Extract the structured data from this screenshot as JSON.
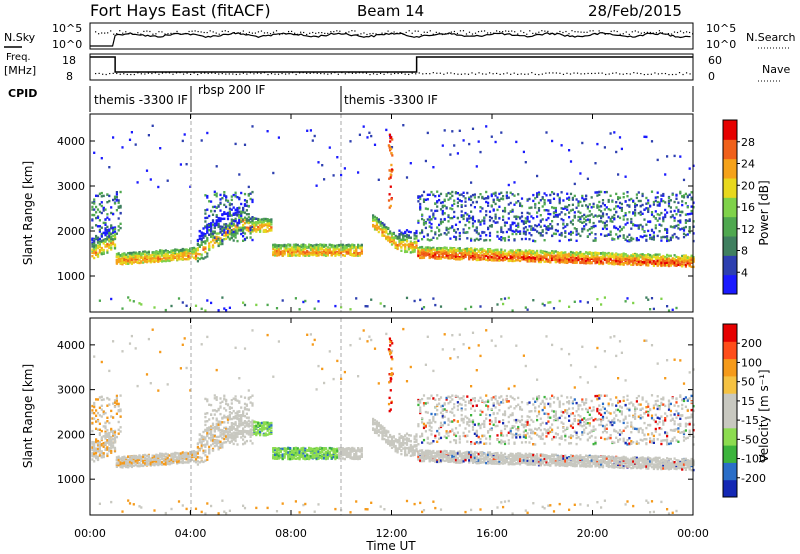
{
  "header": {
    "station": "Fort Hays East (fitACF)",
    "beam": "Beam 14",
    "date": "28/Feb/2015"
  },
  "colors": {
    "power": [
      "#1a1aff",
      "#2d3fb0",
      "#3f7f5f",
      "#4fa84f",
      "#7fd24a",
      "#e8d81e",
      "#f5a21a",
      "#f0601a",
      "#e60000"
    ],
    "velocity": [
      "#e60000",
      "#ff4d1a",
      "#f59a1a",
      "#f5c242",
      "#c8c8c0",
      "#c8c8c0",
      "#8cdc50",
      "#3cb43c",
      "#2a6ec8",
      "#1428b4"
    ],
    "blue": "#1e50c8"
  },
  "top_panels": {
    "sky_label": "N.Sky",
    "search_label": "N.Search",
    "sky_ticks": [
      "10^5",
      "10^0"
    ],
    "search_ticks": [
      "10^5",
      "10^0"
    ],
    "freq_label_1": "Freq.",
    "freq_label_2": "[MHz]",
    "freq_ticks": [
      "18",
      "8"
    ],
    "nave_label": "Nave",
    "nave_ticks": [
      "60",
      "0"
    ],
    "cpid_label": "CPID",
    "cpid_segments": [
      "themis -3300 IF",
      "rbsp 200 IF",
      "themis -3300 IF"
    ]
  },
  "chart_data": [
    {
      "type": "heatmap",
      "title": "",
      "ylabel": "Slant Range [km]",
      "ylim": [
        200,
        4600
      ],
      "yticks": [
        "1000",
        "2000",
        "3000",
        "4000"
      ],
      "colorbar_label": "Power [dB]",
      "colorbar_ticks": [
        "4",
        "8",
        "12",
        "16",
        "20",
        "24",
        "28"
      ]
    },
    {
      "type": "heatmap",
      "title": "",
      "ylabel": "Slant Range [km]",
      "ylim": [
        200,
        4600
      ],
      "yticks": [
        "1000",
        "2000",
        "3000",
        "4000"
      ],
      "colorbar_label": "Velocity [m s⁻¹]",
      "colorbar_ticks": [
        "200",
        "100",
        "50",
        "15",
        "-15",
        "-50",
        "-100",
        "-200"
      ]
    }
  ],
  "xaxis": {
    "xlabel": "Time UT",
    "xlim": [
      "00:00",
      "24:00"
    ],
    "ticks": [
      "00:00",
      "04:00",
      "08:00",
      "12:00",
      "16:00",
      "20:00",
      "00:00"
    ]
  }
}
